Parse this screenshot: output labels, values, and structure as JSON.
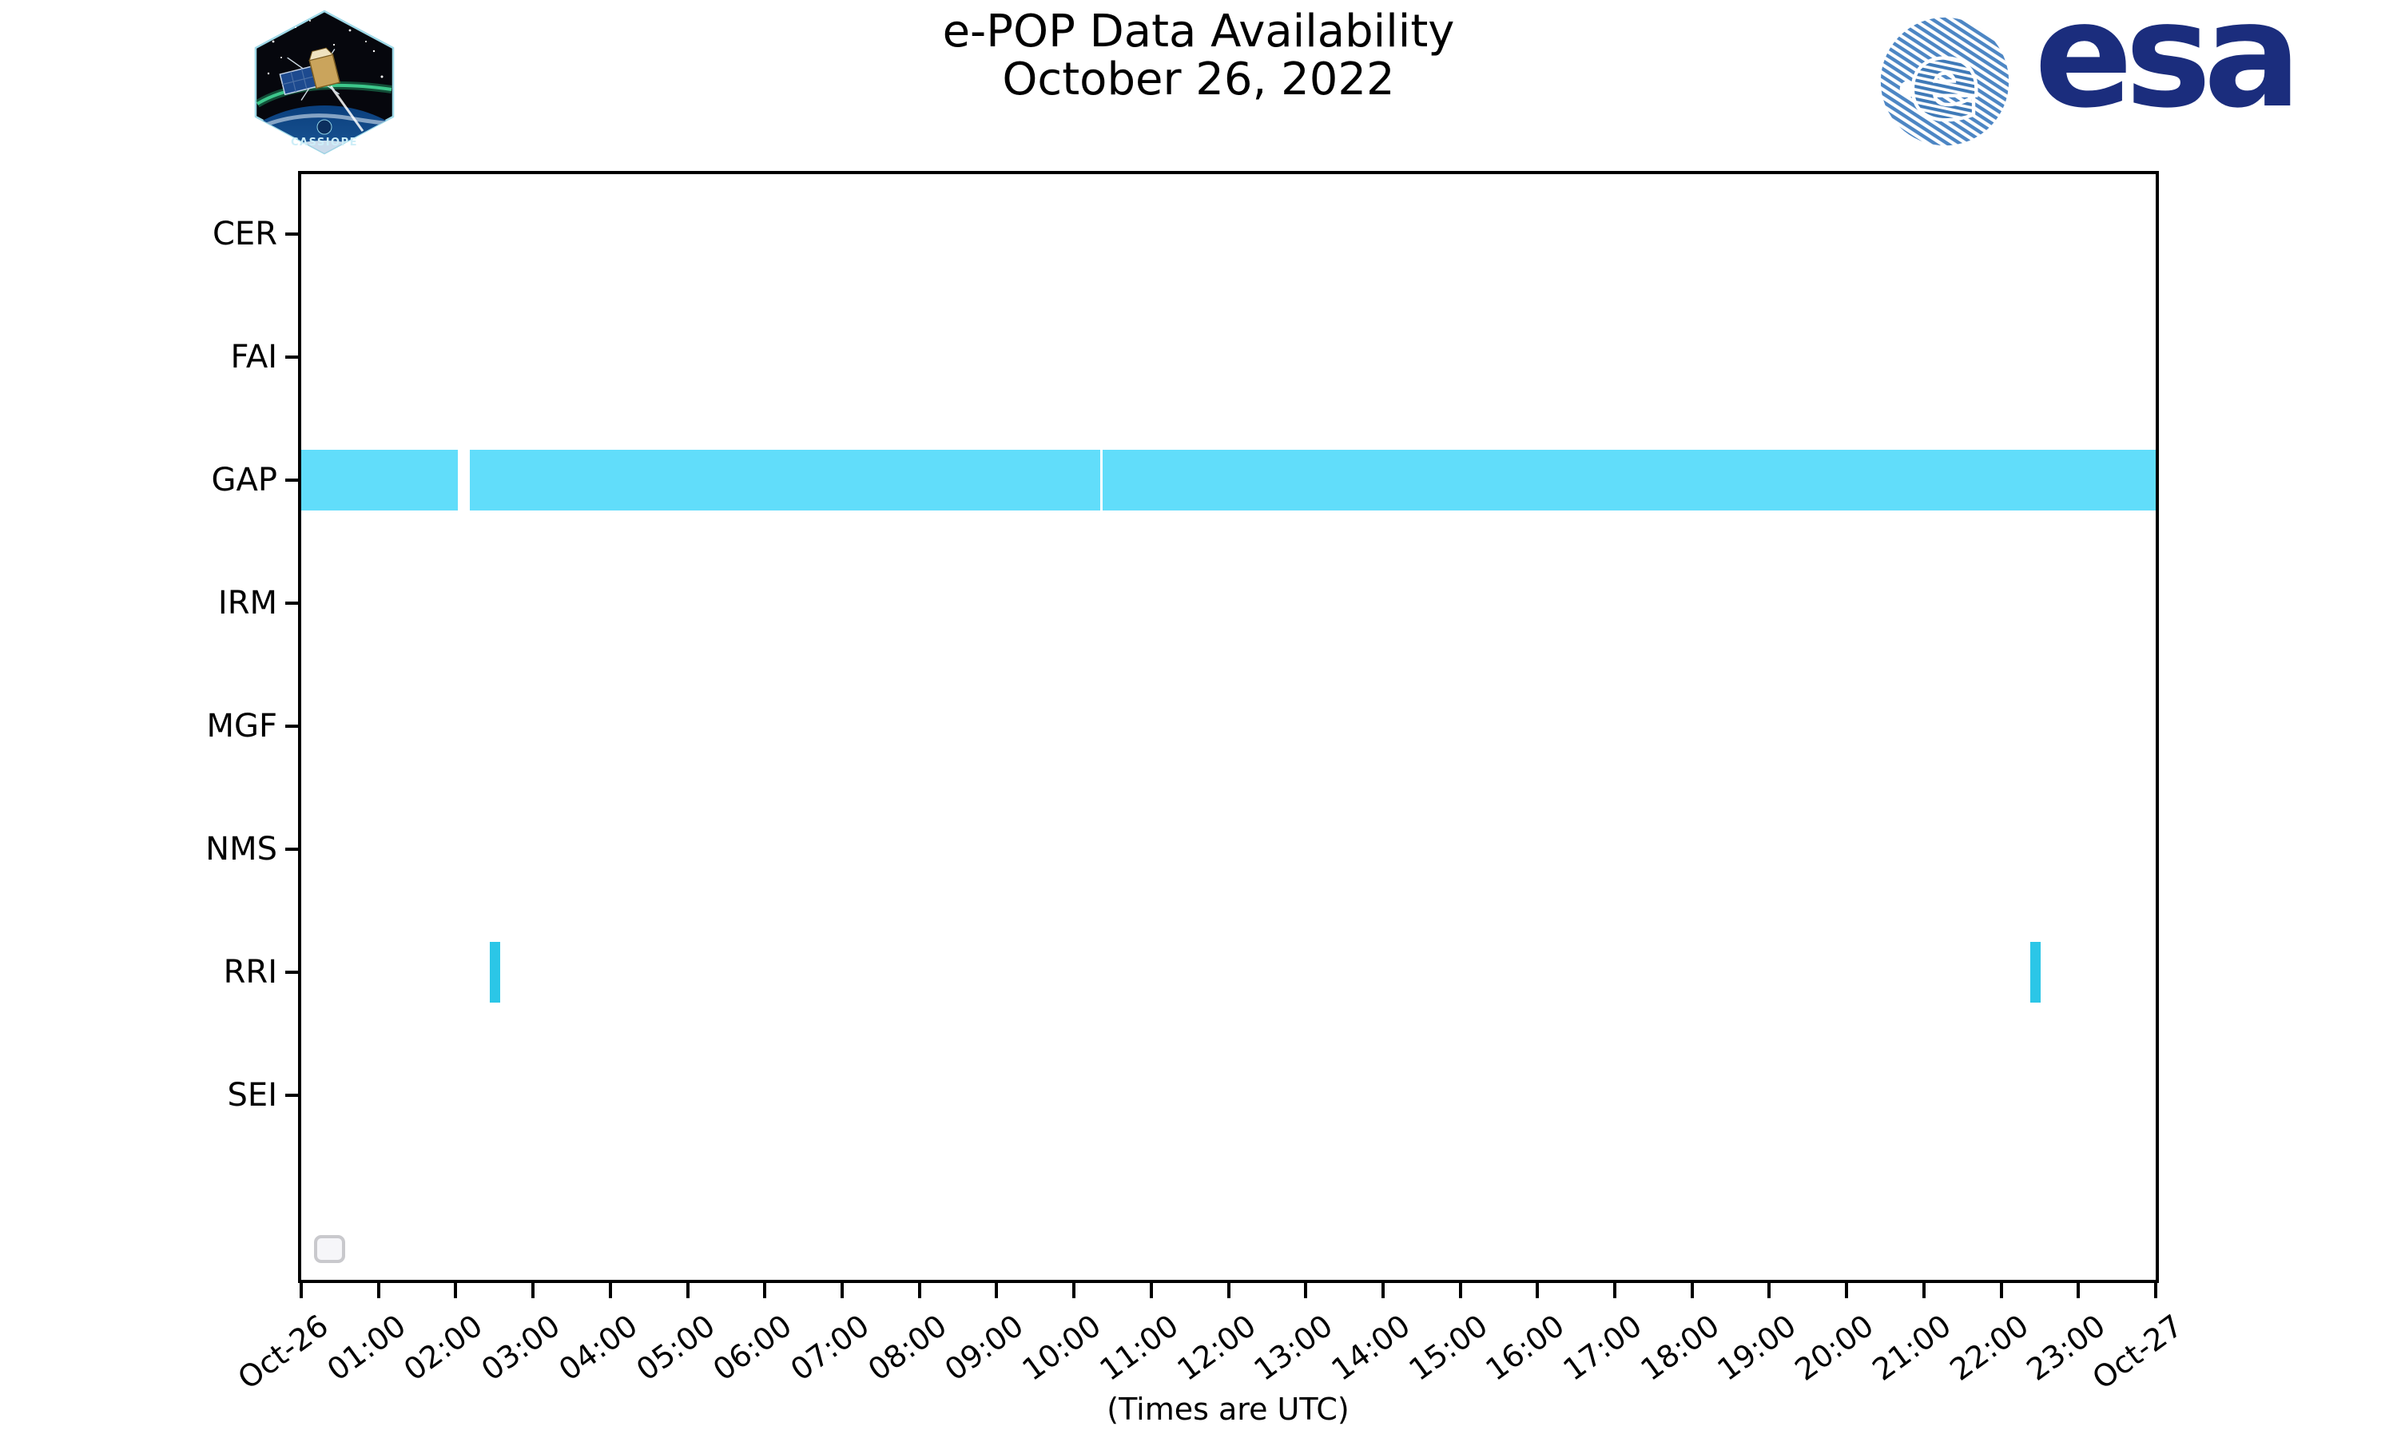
{
  "header": {
    "title_line1": "e-POP Data Availability",
    "title_line2": "October 26, 2022",
    "cassiope_patch_label": "CASSIOPE",
    "esa_logo_text": "esa"
  },
  "colors": {
    "axis": "#000000",
    "gap_bar": "#61ddfa",
    "rri_bar": "#2bc6e7",
    "esa_navy": "#1b2d7d",
    "esa_stripe_blue": "#4d86c4",
    "legend_border": "#c9c9cd"
  },
  "chart_data": {
    "type": "bar",
    "subtype": "horizontal-availability-timeline",
    "title": "e-POP Data Availability",
    "subtitle": "October 26, 2022",
    "categories": [
      "CER",
      "FAI",
      "GAP",
      "IRM",
      "MGF",
      "NMS",
      "RRI",
      "SEI"
    ],
    "xlabel": "(Times are UTC)",
    "x_range_hours": [
      0,
      24
    ],
    "x_ticks": [
      "Oct-26",
      "01:00",
      "02:00",
      "03:00",
      "04:00",
      "05:00",
      "06:00",
      "07:00",
      "08:00",
      "09:00",
      "10:00",
      "11:00",
      "12:00",
      "13:00",
      "14:00",
      "15:00",
      "16:00",
      "17:00",
      "18:00",
      "19:00",
      "20:00",
      "21:00",
      "22:00",
      "23:00",
      "Oct-27"
    ],
    "grid": false,
    "legend": {
      "visible": true,
      "entries": []
    },
    "bar_height_fraction": 0.5,
    "series": [
      {
        "category": "GAP",
        "color": "#61ddfa",
        "intervals": [
          {
            "start_hour": 0.0,
            "end_hour": 2.03
          },
          {
            "start_hour": 2.18,
            "end_hour": 10.34
          },
          {
            "start_hour": 10.37,
            "end_hour": 24.0
          }
        ]
      },
      {
        "category": "RRI",
        "color": "#2bc6e7",
        "intervals": [
          {
            "start_hour": 2.44,
            "end_hour": 2.58
          },
          {
            "start_hour": 22.38,
            "end_hour": 22.51
          }
        ]
      }
    ]
  }
}
